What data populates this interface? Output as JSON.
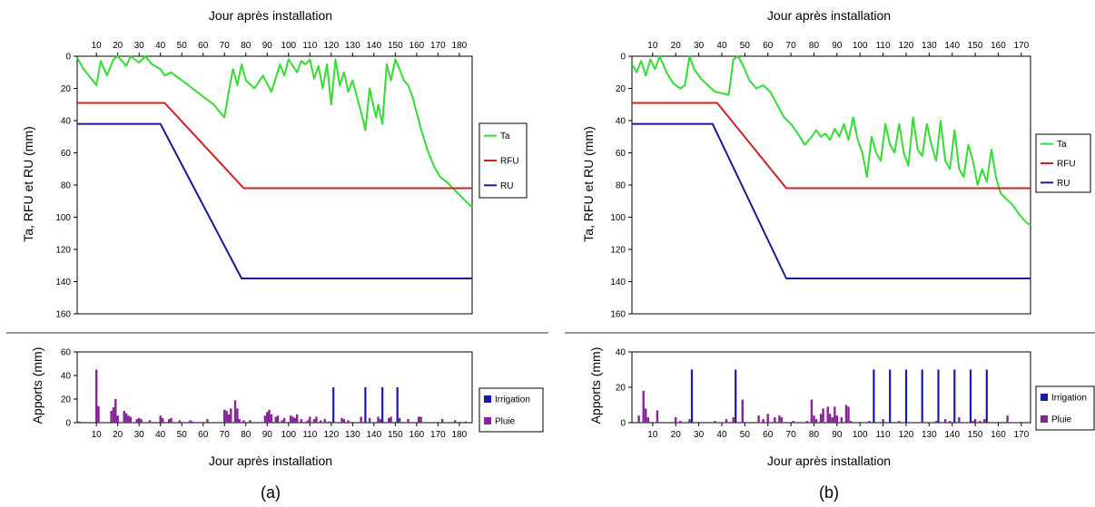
{
  "captions": [
    "(a)",
    "(b)"
  ],
  "legend": {
    "ta": "Ta",
    "rfu": "RFU",
    "ru": "RU",
    "irrigation": "Irrigation",
    "pluie": "Pluie"
  },
  "colors": {
    "ta": "#33dd33",
    "rfu": "#cc2222",
    "ru": "#1a1a99",
    "irrigation": "#1a1aaa",
    "pluie": "#882299",
    "divider": "#333333",
    "frame": "#000000"
  },
  "chart_data": [
    {
      "id": "a-top",
      "type": "line",
      "title": "",
      "xlabel": "Jour après installation",
      "ylabel": "Ta, RFU et RU (mm)",
      "xlim": [
        1,
        186
      ],
      "ylim": [
        0,
        160
      ],
      "y_inverted": true,
      "x_axis_position": "top",
      "xticks": [
        10,
        20,
        30,
        40,
        50,
        60,
        70,
        80,
        90,
        100,
        110,
        120,
        130,
        140,
        150,
        160,
        170,
        180
      ],
      "yticks": [
        0,
        20,
        40,
        60,
        80,
        100,
        120,
        140,
        160
      ],
      "legend_position": "right",
      "series": [
        {
          "name": "Ta",
          "x": [
            1,
            4,
            10,
            12,
            15,
            18,
            20,
            24,
            26,
            30,
            33,
            36,
            40,
            42,
            45,
            50,
            55,
            60,
            65,
            68,
            70,
            72,
            74,
            76,
            78,
            80,
            84,
            88,
            92,
            96,
            98,
            100,
            104,
            106,
            108,
            110,
            112,
            114,
            116,
            118,
            120,
            122,
            124,
            126,
            128,
            130,
            133,
            135,
            136,
            138,
            140,
            141,
            142,
            144,
            146,
            148,
            150,
            152,
            154,
            156,
            158,
            160,
            162,
            165,
            168,
            171,
            174,
            177,
            180,
            183,
            186
          ],
          "y": [
            1,
            8,
            18,
            3,
            12,
            2,
            0,
            6,
            0,
            4,
            0,
            5,
            8,
            12,
            10,
            15,
            20,
            25,
            30,
            35,
            38,
            22,
            8,
            18,
            5,
            15,
            20,
            12,
            22,
            5,
            12,
            2,
            10,
            3,
            5,
            2,
            14,
            6,
            20,
            5,
            30,
            2,
            18,
            10,
            22,
            15,
            30,
            40,
            46,
            20,
            32,
            38,
            30,
            42,
            5,
            15,
            2,
            8,
            15,
            18,
            25,
            35,
            45,
            58,
            68,
            75,
            78,
            82,
            86,
            90,
            94
          ]
        },
        {
          "name": "RFU",
          "x": [
            1,
            42,
            79,
            186
          ],
          "y": [
            29,
            29,
            82,
            82
          ]
        },
        {
          "name": "RU",
          "x": [
            1,
            40,
            78,
            186
          ],
          "y": [
            42,
            42,
            138,
            138
          ]
        }
      ]
    },
    {
      "id": "a-bottom",
      "type": "bar",
      "title": "",
      "xlabel": "Jour après installation",
      "ylabel": "Apports (mm)",
      "xlim": [
        1,
        186
      ],
      "ylim": [
        0,
        60
      ],
      "xticks": [
        10,
        20,
        30,
        40,
        50,
        60,
        70,
        80,
        90,
        100,
        110,
        120,
        130,
        140,
        150,
        160,
        170,
        180
      ],
      "yticks": [
        0,
        20,
        40,
        60
      ],
      "legend_position": "right",
      "series": [
        {
          "name": "Irrigation",
          "x": [
            121,
            136,
            144,
            151
          ],
          "values": [
            30,
            30,
            30,
            30
          ]
        },
        {
          "name": "Pluie",
          "x": [
            2,
            10,
            11,
            17,
            18,
            19,
            20,
            23,
            24,
            25,
            26,
            29,
            30,
            31,
            35,
            40,
            41,
            44,
            45,
            49,
            54,
            55,
            62,
            70,
            71,
            72,
            73,
            75,
            76,
            77,
            79,
            82,
            89,
            90,
            91,
            92,
            94,
            95,
            97,
            98,
            101,
            102,
            103,
            104,
            106,
            109,
            110,
            112,
            113,
            115,
            117,
            119,
            125,
            126,
            128,
            134,
            138,
            142,
            143,
            147,
            148,
            152,
            156,
            161,
            162,
            172,
            178,
            183
          ],
          "values": [
            1,
            45,
            14,
            10,
            13,
            20,
            6,
            10,
            8,
            6,
            5,
            3,
            4,
            3,
            2,
            6,
            4,
            3,
            4,
            2,
            2,
            1,
            3,
            11,
            10,
            7,
            12,
            19,
            12,
            3,
            2,
            2,
            6,
            9,
            11,
            7,
            5,
            6,
            2,
            4,
            6,
            5,
            4,
            7,
            3,
            2,
            5,
            3,
            5,
            2,
            3,
            1,
            4,
            3,
            2,
            5,
            4,
            5,
            3,
            4,
            5,
            4,
            3,
            5,
            5,
            3,
            2,
            1
          ]
        }
      ]
    },
    {
      "id": "b-top",
      "type": "line",
      "title": "",
      "xlabel": "Jour après installation",
      "ylabel": "Ta, RFU et RU (mm)",
      "xlim": [
        1,
        174
      ],
      "ylim": [
        0,
        160
      ],
      "y_inverted": true,
      "x_axis_position": "top",
      "xticks": [
        10,
        20,
        30,
        40,
        50,
        60,
        70,
        80,
        90,
        100,
        110,
        120,
        130,
        140,
        150,
        160,
        170
      ],
      "yticks": [
        0,
        20,
        40,
        60,
        80,
        100,
        120,
        140,
        160
      ],
      "legend_position": "right",
      "series": [
        {
          "name": "Ta",
          "x": [
            1,
            3,
            5,
            7,
            9,
            11,
            13,
            16,
            19,
            22,
            24,
            26,
            28,
            31,
            34,
            37,
            40,
            43,
            45,
            47,
            49,
            52,
            55,
            58,
            61,
            64,
            67,
            70,
            73,
            76,
            79,
            81,
            83,
            85,
            87,
            89,
            91,
            93,
            95,
            97,
            99,
            101,
            103,
            105,
            107,
            109,
            111,
            113,
            115,
            117,
            119,
            121,
            123,
            125,
            127,
            129,
            131,
            133,
            135,
            137,
            139,
            141,
            143,
            145,
            147,
            149,
            151,
            153,
            155,
            157,
            159,
            161,
            163,
            166,
            169,
            172,
            174
          ],
          "y": [
            5,
            10,
            3,
            12,
            2,
            8,
            0,
            10,
            17,
            20,
            18,
            0,
            8,
            14,
            18,
            22,
            23,
            24,
            2,
            0,
            5,
            15,
            20,
            18,
            22,
            30,
            38,
            42,
            48,
            55,
            50,
            46,
            50,
            48,
            52,
            45,
            50,
            42,
            52,
            38,
            52,
            60,
            75,
            50,
            60,
            65,
            42,
            55,
            60,
            42,
            60,
            68,
            38,
            58,
            62,
            42,
            55,
            65,
            40,
            65,
            70,
            46,
            70,
            75,
            55,
            65,
            80,
            70,
            78,
            58,
            75,
            85,
            88,
            92,
            98,
            103,
            105
          ]
        },
        {
          "name": "RFU",
          "x": [
            1,
            38,
            68,
            174
          ],
          "y": [
            29,
            29,
            82,
            82
          ]
        },
        {
          "name": "RU",
          "x": [
            1,
            36,
            68,
            174
          ],
          "y": [
            42,
            42,
            138,
            138
          ]
        }
      ]
    },
    {
      "id": "b-bottom",
      "type": "bar",
      "title": "",
      "xlabel": "Jour après installation",
      "ylabel": "Apports (mm)",
      "xlim": [
        1,
        174
      ],
      "ylim": [
        0,
        40
      ],
      "xticks": [
        10,
        20,
        30,
        40,
        50,
        60,
        70,
        80,
        90,
        100,
        110,
        120,
        130,
        140,
        150,
        160,
        170
      ],
      "yticks": [
        0,
        20,
        40
      ],
      "legend_position": "right",
      "series": [
        {
          "name": "Irrigation",
          "x": [
            27,
            46,
            106,
            113,
            120,
            127,
            134,
            141,
            148,
            155
          ],
          "values": [
            30,
            30,
            30,
            30,
            30,
            30,
            30,
            30,
            30,
            30
          ]
        },
        {
          "name": "Pluie",
          "x": [
            4,
            6,
            7,
            8,
            12,
            20,
            22,
            26,
            37,
            42,
            45,
            49,
            56,
            58,
            60,
            63,
            65,
            66,
            71,
            77,
            79,
            80,
            81,
            83,
            84,
            86,
            87,
            88,
            89,
            90,
            92,
            94,
            95,
            96,
            104,
            110,
            117,
            127,
            133,
            137,
            139,
            143,
            149,
            150,
            152,
            154,
            164
          ],
          "values": [
            4,
            18,
            8,
            3,
            7,
            3,
            1,
            2,
            1,
            2,
            3,
            13,
            4,
            2,
            5,
            3,
            4,
            3,
            1,
            1,
            13,
            4,
            2,
            5,
            8,
            9,
            5,
            3,
            9,
            4,
            3,
            10,
            9,
            1,
            1,
            2,
            1,
            2,
            1,
            2,
            1,
            3,
            1,
            2,
            1,
            2,
            4
          ]
        }
      ]
    }
  ]
}
